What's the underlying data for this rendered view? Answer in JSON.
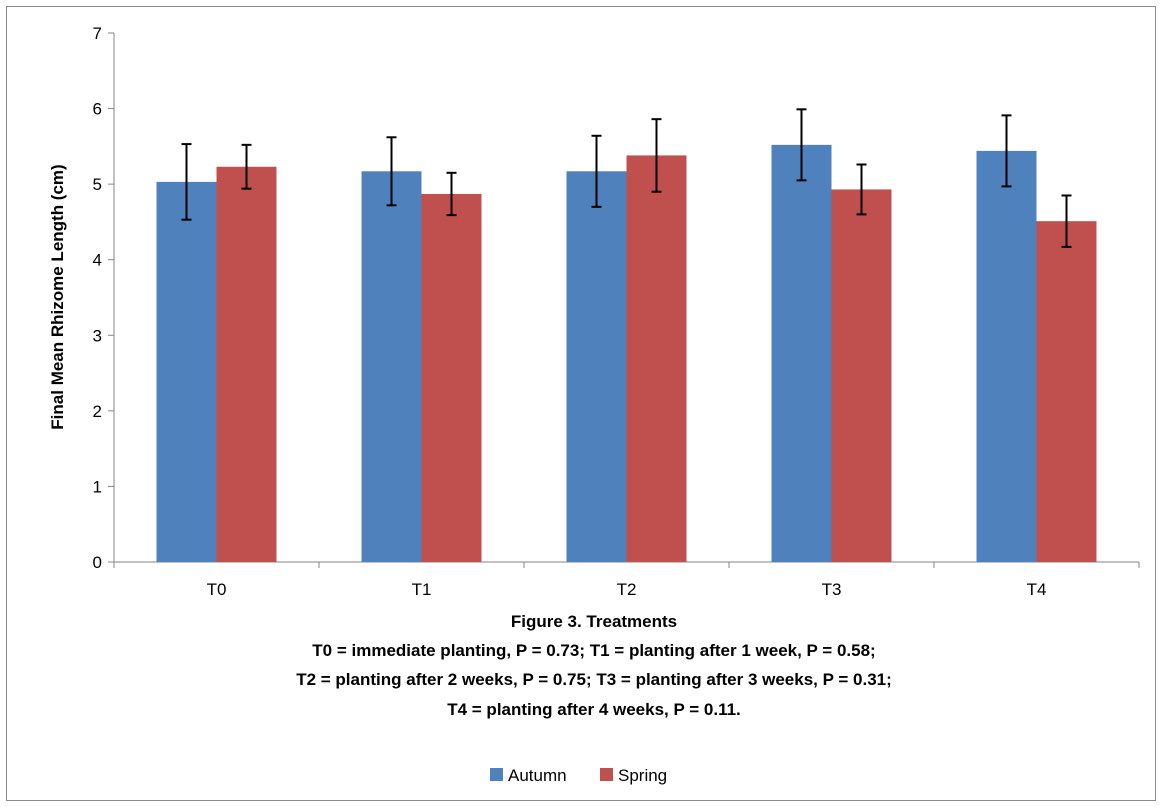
{
  "chart_data": {
    "type": "bar",
    "categories": [
      "T0",
      "T1",
      "T2",
      "T3",
      "T4"
    ],
    "series": [
      {
        "name": "Autumn",
        "color": "#4F81BD",
        "values": [
          5.03,
          5.17,
          5.17,
          5.52,
          5.44
        ],
        "errors": [
          0.5,
          0.45,
          0.47,
          0.47,
          0.47
        ]
      },
      {
        "name": "Spring",
        "color": "#C0504D",
        "values": [
          5.23,
          4.87,
          5.38,
          4.93,
          4.51
        ],
        "errors": [
          0.29,
          0.28,
          0.48,
          0.33,
          0.34
        ]
      }
    ],
    "ylabel": "Final Mean Rhizome Length (cm)",
    "ylim": [
      0,
      7
    ],
    "yticks": [
      "0",
      "1",
      "2",
      "3",
      "4",
      "5",
      "6",
      "7"
    ],
    "xlabel_lines": [
      "Figure 3. Treatments",
      "T0 = immediate planting, P = 0.73; T1 = planting after 1 week, P = 0.58;",
      "T2 = planting after 2 weeks, P = 0.75; T3 = planting after 3 weeks, P = 0.31;",
      "T4 = planting after 4 weeks, P = 0.11."
    ],
    "legend_position": "bottom",
    "grid": false
  }
}
